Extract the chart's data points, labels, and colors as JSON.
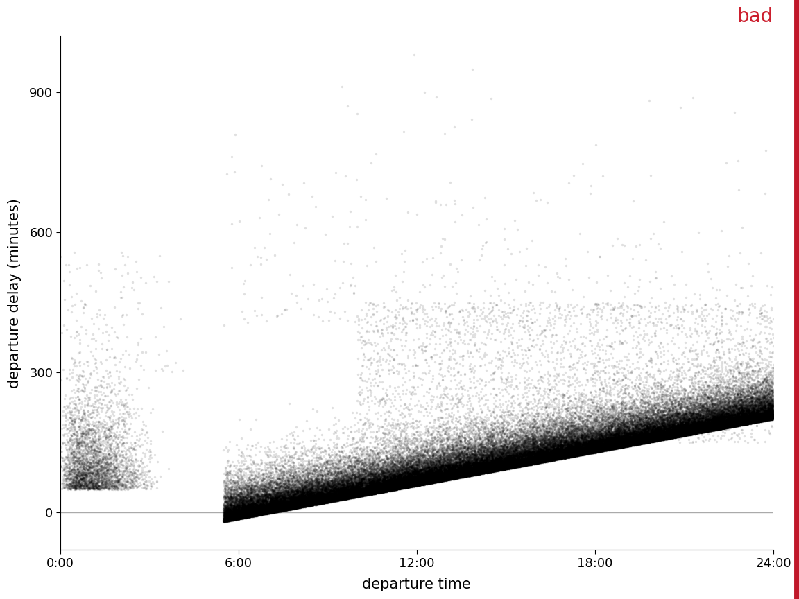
{
  "title": "bad",
  "title_color": "#cc1f2e",
  "xlabel": "departure time",
  "ylabel": "departure delay (minutes)",
  "xlabel_color": "#000000",
  "ylabel_color": "#000000",
  "tick_label_color": "#000000",
  "background_color": "#ffffff",
  "dot_color": "#000000",
  "dot_alpha": 0.12,
  "dot_size": 6,
  "xlim": [
    0,
    1440
  ],
  "ylim": [
    -80,
    1020
  ],
  "yticks": [
    0,
    300,
    600,
    900
  ],
  "xticks": [
    0,
    360,
    720,
    1080,
    1440
  ],
  "xtick_labels": [
    "0:00",
    "6:00",
    "12:00",
    "18:00",
    "24:00"
  ],
  "hline_y": 0,
  "hline_color": "#aaaaaa",
  "red_bar_color": "#c0182a",
  "title_fontsize": 20,
  "label_fontsize": 15,
  "tick_fontsize": 13
}
